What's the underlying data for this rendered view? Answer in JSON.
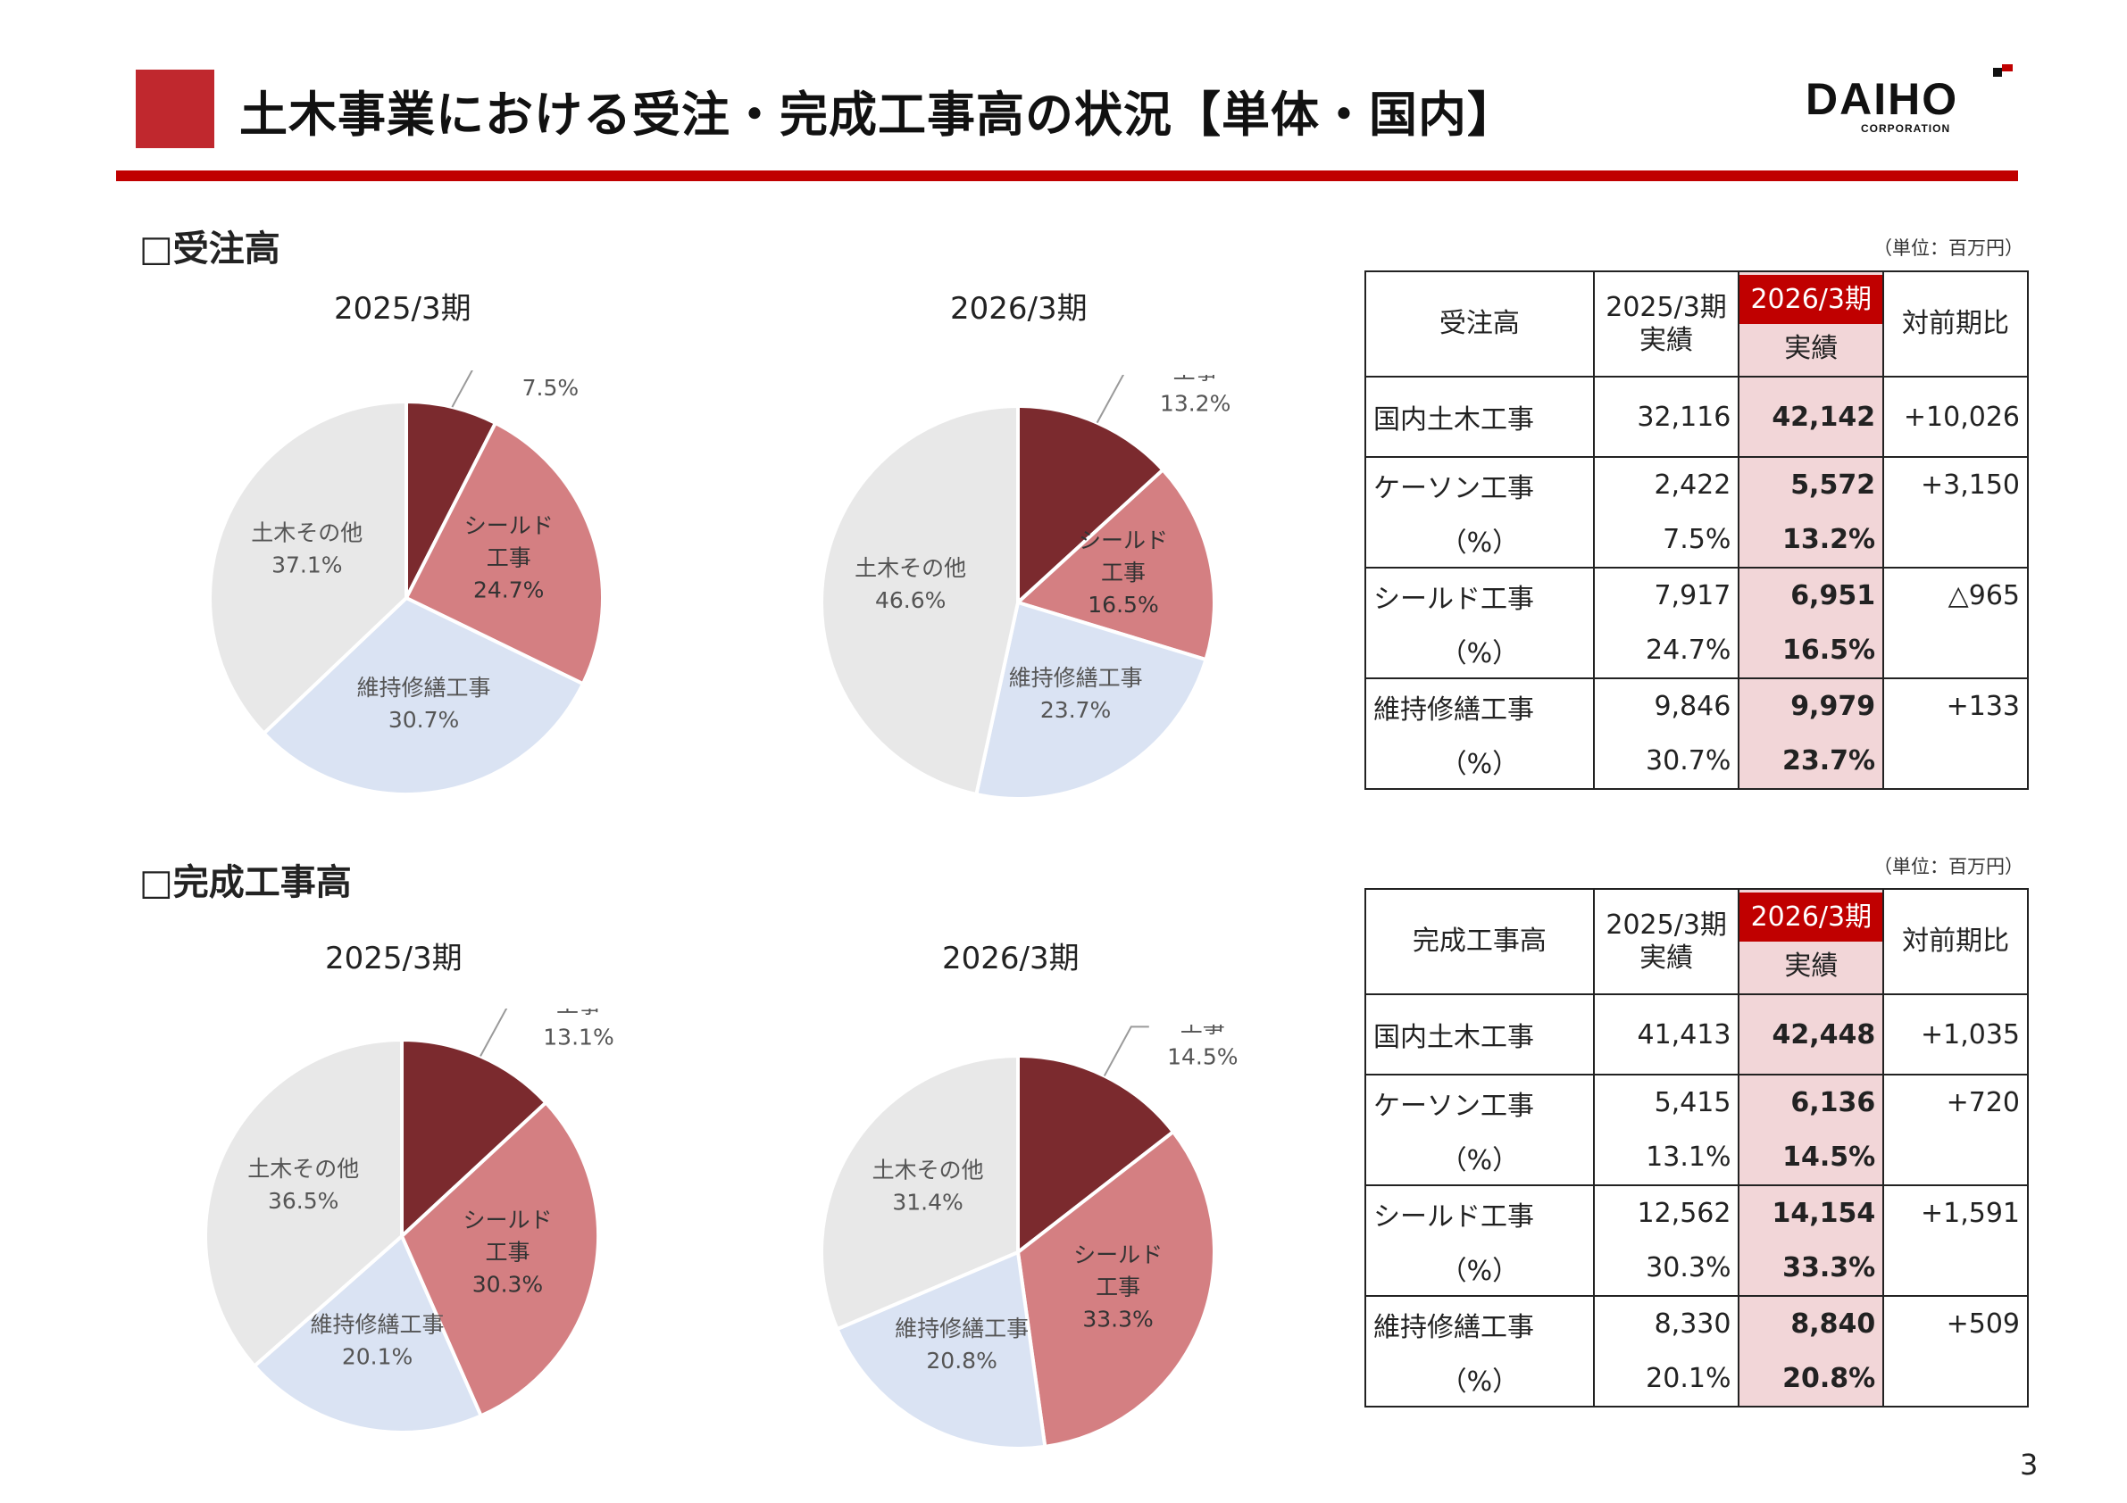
{
  "page": {
    "title": "土木事業における受注・完成工事高の状況【単体・国内】",
    "logo_text": "DAIHO",
    "logo_subtext": "CORPORATION",
    "page_number": "3",
    "colors": {
      "accent": "#c00000",
      "caisson": "#7b2a2e",
      "shield": "#d47f82",
      "maintenance": "#dae3f3",
      "other": "#e8e8e8",
      "highlight": "#f2d6d8"
    }
  },
  "orders": {
    "section_title": "□受注高",
    "unit": "（単位：百万円）",
    "table": {
      "header": {
        "label": "受注高",
        "prev_period": "2025/3期",
        "prev_type": "実績",
        "curr_period": "2026/3期",
        "curr_type": "実績",
        "diff": "対前期比"
      },
      "rows": [
        {
          "label": "国内土木工事",
          "prev": "32,116",
          "curr": "42,142",
          "diff": "+10,026"
        },
        {
          "label": "ケーソン工事",
          "prev": "2,422",
          "curr": "5,572",
          "diff": "+3,150"
        },
        {
          "label": "（%）",
          "prev": "7.5%",
          "curr": "13.2%",
          "diff": ""
        },
        {
          "label": "シールド工事",
          "prev": "7,917",
          "curr": "6,951",
          "diff": "△965"
        },
        {
          "label": "（%）",
          "prev": "24.7%",
          "curr": "16.5%",
          "diff": ""
        },
        {
          "label": "維持修繕工事",
          "prev": "9,846",
          "curr": "9,979",
          "diff": "+133"
        },
        {
          "label": "（%）",
          "prev": "30.7%",
          "curr": "23.7%",
          "diff": ""
        }
      ]
    }
  },
  "completed": {
    "section_title": "□完成工事高",
    "unit": "（単位：百万円）",
    "table": {
      "header": {
        "label": "完成工事高",
        "prev_period": "2025/3期",
        "prev_type": "実績",
        "curr_period": "2026/3期",
        "curr_type": "実績",
        "diff": "対前期比"
      },
      "rows": [
        {
          "label": "国内土木工事",
          "prev": "41,413",
          "curr": "42,448",
          "diff": "+1,035"
        },
        {
          "label": "ケーソン工事",
          "prev": "5,415",
          "curr": "6,136",
          "diff": "+720"
        },
        {
          "label": "（%）",
          "prev": "13.1%",
          "curr": "14.5%",
          "diff": ""
        },
        {
          "label": "シールド工事",
          "prev": "12,562",
          "curr": "14,154",
          "diff": "+1,591"
        },
        {
          "label": "（%）",
          "prev": "30.3%",
          "curr": "33.3%",
          "diff": ""
        },
        {
          "label": "維持修繕工事",
          "prev": "8,330",
          "curr": "8,840",
          "diff": "+509"
        },
        {
          "label": "（%）",
          "prev": "20.1%",
          "curr": "20.8%",
          "diff": ""
        }
      ]
    }
  },
  "chart_data": [
    {
      "type": "pie",
      "title": "2025/3期",
      "slices": [
        {
          "name": "ケーソン工事",
          "value": 7.5,
          "label": "7.5%",
          "color": "#7b2a2e"
        },
        {
          "name": "シールド工事",
          "value": 24.7,
          "label": "24.7%",
          "color": "#d47f82"
        },
        {
          "name": "維持修繕工事",
          "value": 30.7,
          "label": "30.7%",
          "color": "#dae3f3"
        },
        {
          "name": "土木その他",
          "value": 37.1,
          "label": "37.1%",
          "color": "#e8e8e8"
        }
      ]
    },
    {
      "type": "pie",
      "title": "2026/3期",
      "slices": [
        {
          "name": "ケーソン工事",
          "value": 13.2,
          "label": "13.2%",
          "color": "#7b2a2e"
        },
        {
          "name": "シールド工事",
          "value": 16.5,
          "label": "16.5%",
          "color": "#d47f82"
        },
        {
          "name": "維持修繕工事",
          "value": 23.7,
          "label": "23.7%",
          "color": "#dae3f3"
        },
        {
          "name": "土木その他",
          "value": 46.6,
          "label": "46.6%",
          "color": "#e8e8e8"
        }
      ]
    },
    {
      "type": "pie",
      "title": "2025/3期",
      "slices": [
        {
          "name": "ケーソン工事",
          "value": 13.1,
          "label": "13.1%",
          "color": "#7b2a2e"
        },
        {
          "name": "シールド工事",
          "value": 30.3,
          "label": "30.3%",
          "color": "#d47f82"
        },
        {
          "name": "維持修繕工事",
          "value": 20.1,
          "label": "20.1%",
          "color": "#dae3f3"
        },
        {
          "name": "土木その他",
          "value": 36.5,
          "label": "36.5%",
          "color": "#e8e8e8"
        }
      ]
    },
    {
      "type": "pie",
      "title": "2026/3期",
      "slices": [
        {
          "name": "ケーソン工事",
          "value": 14.5,
          "label": "14.5%",
          "color": "#7b2a2e"
        },
        {
          "name": "シールド工事",
          "value": 33.3,
          "label": "33.3%",
          "color": "#d47f82"
        },
        {
          "name": "維持修繕工事",
          "value": 20.8,
          "label": "20.8%",
          "color": "#dae3f3"
        },
        {
          "name": "土木その他",
          "value": 31.4,
          "label": "31.4%",
          "color": "#e8e8e8"
        }
      ]
    }
  ]
}
